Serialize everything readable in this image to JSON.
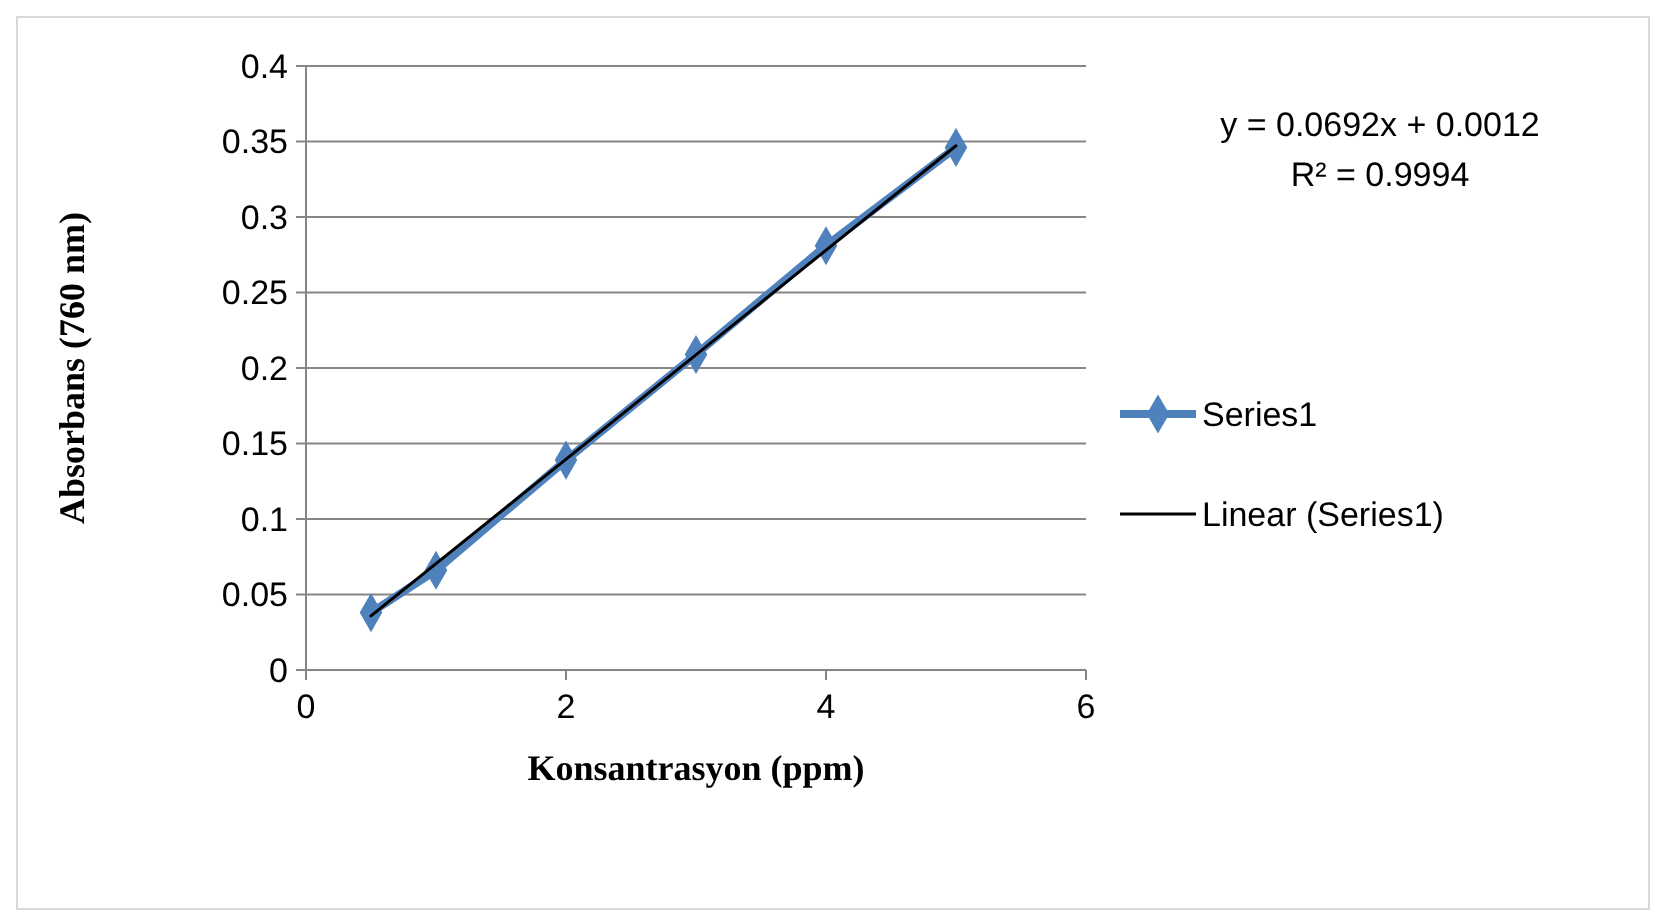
{
  "chart_data": {
    "type": "line",
    "xlabel": "Konsantrasyon (ppm)",
    "ylabel": "Absorbans (760 nm)",
    "xlim": [
      0,
      6
    ],
    "xticks": [
      0,
      2,
      4,
      6
    ],
    "ylim": [
      0,
      0.4
    ],
    "yticks": [
      0,
      0.05,
      0.1,
      0.15,
      0.2,
      0.25,
      0.3,
      0.35,
      0.4
    ],
    "grid": "y",
    "legend": "right",
    "series": [
      {
        "name": "Series1",
        "color": "#4f81bd",
        "x": [
          0.5,
          1,
          2,
          3,
          4,
          5
        ],
        "values": [
          0.038,
          0.066,
          0.139,
          0.209,
          0.281,
          0.346
        ],
        "marker": "diamond",
        "line_style": "solid"
      },
      {
        "name": "Linear (Series1)",
        "color": "#000000",
        "type": "line",
        "x": [
          0.5,
          5
        ],
        "values": [
          0.0358,
          0.3472
        ],
        "marker": "none",
        "line_style": "solid"
      }
    ],
    "annotations": [
      "y = 0.0692x + 0.0012",
      "R² = 0.9994"
    ]
  }
}
